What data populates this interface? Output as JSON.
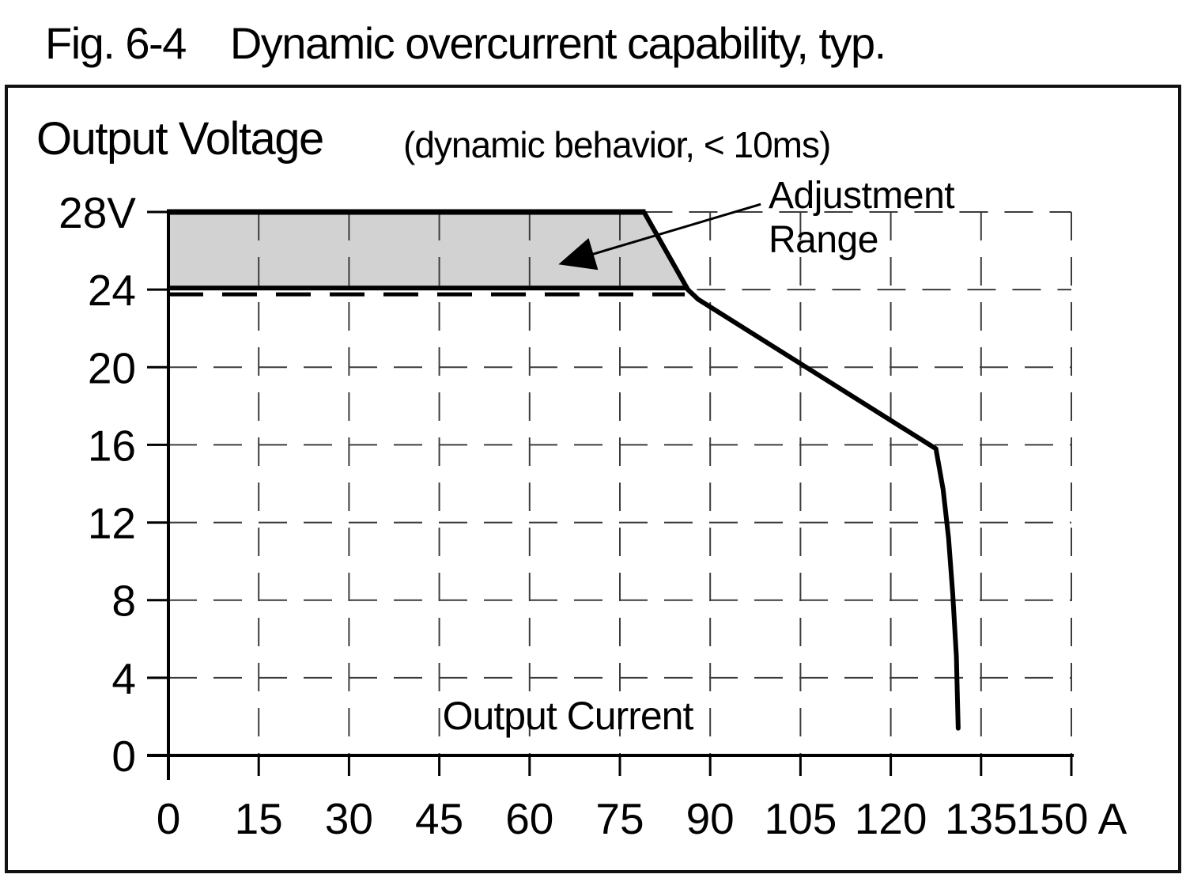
{
  "figure": {
    "title_prefix": "Fig. 6-4",
    "title": "Dynamic overcurrent capability, typ."
  },
  "colors": {
    "region_fill": "#d2d2d2",
    "line": "#000000",
    "grid": "#3c3c3c",
    "axis": "#000000",
    "border": "#111111"
  },
  "chart_data": {
    "type": "line",
    "title": "Dynamic overcurrent capability, typ.",
    "y_axis_title": "Output Voltage",
    "y_axis_note": "(dynamic behavior, < 10ms)",
    "x_axis_title": "Output Current",
    "x_unit": "A",
    "y_unit": "V",
    "xlim": [
      0,
      150
    ],
    "ylim": [
      0,
      28
    ],
    "grid": "dashed",
    "x_ticks": [
      0,
      15,
      30,
      45,
      60,
      75,
      90,
      105,
      120,
      135,
      150
    ],
    "x_tick_labels": [
      "0",
      "15",
      "30",
      "45",
      "60",
      "75",
      "90",
      "105",
      "120",
      "135",
      "150 A"
    ],
    "y_ticks": [
      0,
      4,
      8,
      12,
      16,
      20,
      24,
      28
    ],
    "y_tick_labels": [
      "0",
      "4",
      "8",
      "12",
      "16",
      "20",
      "24",
      "28V"
    ],
    "adjustment_region": {
      "description": "Shaded adjustment range band between 24 V and 28 V",
      "polygon_AV": [
        [
          0,
          28
        ],
        [
          79,
          28
        ],
        [
          86.3,
          24
        ],
        [
          0,
          24
        ]
      ]
    },
    "curve": {
      "name": "Dynamic overcurrent capability (typ.)",
      "points_AV": [
        [
          86.3,
          24
        ],
        [
          88,
          23.5
        ],
        [
          127.5,
          15.8
        ],
        [
          128.7,
          13.7
        ],
        [
          129.6,
          11.2
        ],
        [
          130.3,
          8.3
        ],
        [
          130.9,
          5.1
        ],
        [
          131.2,
          1.4
        ]
      ]
    },
    "annotation": {
      "lines": {
        "0": "Adjustment",
        "1": "Range"
      },
      "arrow_from_AV": [
        98.4,
        28.4
      ],
      "arrow_to_AV": [
        64.8,
        25.3
      ]
    }
  }
}
